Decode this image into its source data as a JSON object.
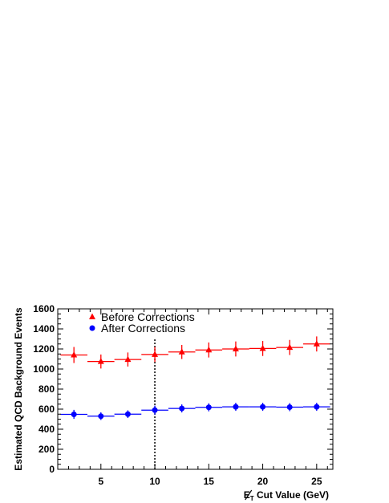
{
  "chart_data": {
    "type": "scatter",
    "title": "",
    "xlabel": "Cut Value (GeV)",
    "xlabel_symbol": "E",
    "xlabel_subscript": "T",
    "ylabel": "Estimated QCD Background Events",
    "xlim": [
      1,
      26.5
    ],
    "ylim": [
      0,
      1600
    ],
    "x_ticks": [
      5,
      10,
      15,
      20,
      25
    ],
    "y_ticks": [
      0,
      200,
      400,
      600,
      800,
      1000,
      1200,
      1400,
      1600
    ],
    "grid": false,
    "legend_position": "top-left",
    "reference_line": {
      "x": 10,
      "style": "dotted"
    },
    "series": [
      {
        "name": "Before Corrections",
        "marker": "triangle",
        "color": "#ff0000",
        "x": [
          2.5,
          5,
          7.5,
          10,
          12.5,
          15,
          17.5,
          20,
          22.5,
          25
        ],
        "y": [
          1140,
          1075,
          1095,
          1145,
          1170,
          1190,
          1200,
          1205,
          1215,
          1250
        ],
        "yerr": [
          80,
          70,
          70,
          75,
          70,
          75,
          75,
          75,
          75,
          75
        ],
        "xerr": 1.25
      },
      {
        "name": "After Corrections",
        "marker": "circle",
        "color": "#0000ff",
        "x": [
          2.5,
          5,
          7.5,
          10,
          12.5,
          15,
          17.5,
          20,
          22.5,
          25
        ],
        "y": [
          548,
          530,
          550,
          590,
          607,
          618,
          623,
          623,
          620,
          623
        ],
        "yerr": [
          45,
          38,
          38,
          45,
          40,
          40,
          40,
          40,
          40,
          40
        ],
        "xerr": 1.25
      }
    ]
  }
}
